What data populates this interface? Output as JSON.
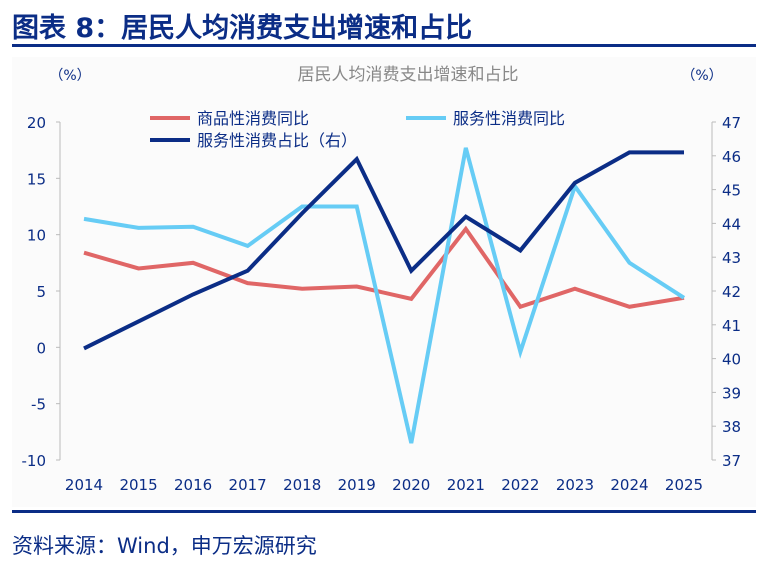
{
  "header": {
    "title": "图表 8：居民人均消费支出增速和占比"
  },
  "footer": {
    "source": "资料来源：Wind，申万宏源研究"
  },
  "chart_data": {
    "type": "line",
    "title": "居民人均消费支出增速和占比",
    "ylabel_left": "（%）",
    "ylabel_right": "（%）",
    "x": [
      "2014",
      "2015",
      "2016",
      "2017",
      "2018",
      "2019",
      "2020",
      "2021",
      "2022",
      "2023",
      "2024",
      "2025"
    ],
    "ylim_left": [
      -10,
      20
    ],
    "yticks_left": [
      20,
      15,
      10,
      5,
      0,
      -5,
      -10
    ],
    "ylim_right": [
      37,
      47
    ],
    "yticks_right": [
      47,
      46,
      45,
      44,
      43,
      42,
      41,
      40,
      39,
      38,
      37
    ],
    "grid": false,
    "legend_position": "top",
    "series": [
      {
        "name": "商品性消费同比",
        "axis": "left",
        "color": "#e06666",
        "values": [
          8.4,
          7.0,
          7.5,
          5.7,
          5.2,
          5.4,
          4.3,
          10.5,
          3.6,
          5.2,
          3.6,
          4.4
        ]
      },
      {
        "name": "服务性消费同比",
        "axis": "left",
        "color": "#66ccf5",
        "values": [
          11.4,
          10.6,
          10.7,
          9.0,
          12.5,
          12.5,
          -8.5,
          17.7,
          -0.4,
          14.3,
          7.5,
          4.4
        ]
      },
      {
        "name": "服务性消费占比（右）",
        "axis": "right",
        "color": "#0b2d86",
        "values": [
          40.3,
          41.1,
          41.9,
          42.6,
          44.3,
          45.9,
          42.6,
          44.2,
          43.2,
          45.2,
          46.1,
          46.1
        ]
      }
    ]
  }
}
